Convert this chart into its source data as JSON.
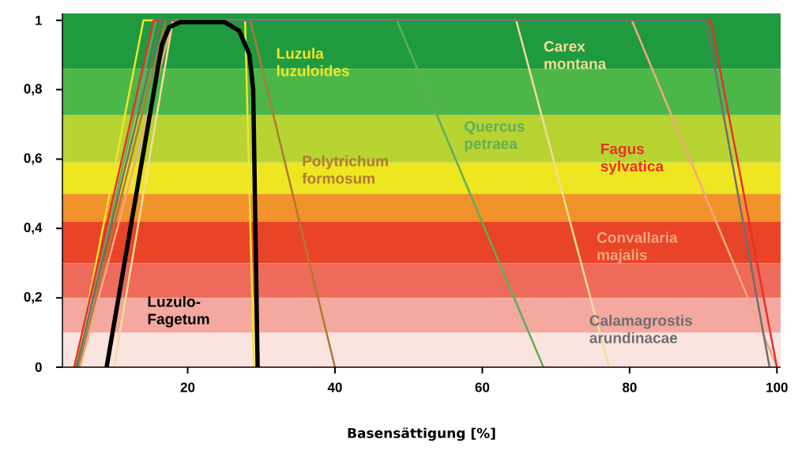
{
  "chart_data": {
    "type": "line",
    "xlabel": "Basensättigung [%]",
    "xlim": [
      3,
      100.5
    ],
    "ylim": [
      0,
      1.02
    ],
    "xticks": [
      20,
      40,
      60,
      80,
      100
    ],
    "yticks": [
      0,
      {
        "value": 0.2,
        "label": "0,2"
      },
      {
        "value": 0.4,
        "label": "0,4"
      },
      {
        "value": 0.6,
        "label": "0,6"
      },
      {
        "value": 0.8,
        "label": "0,8"
      },
      1
    ],
    "bands": [
      {
        "axis": "y",
        "from": 0.86,
        "to": 1.02,
        "color": "#1f9a3f"
      },
      {
        "axis": "y",
        "from": 0.727,
        "to": 0.86,
        "color": "#4cb648"
      },
      {
        "axis": "y",
        "from": 0.59,
        "to": 0.727,
        "color": "#b8d432"
      },
      {
        "axis": "y",
        "from": 0.5,
        "to": 0.59,
        "color": "#eee621"
      },
      {
        "axis": "y",
        "from": 0.42,
        "to": 0.5,
        "color": "#f2922a"
      },
      {
        "axis": "y",
        "from": 0.3,
        "to": 0.42,
        "color": "#e94427"
      },
      {
        "axis": "y",
        "from": 0.2,
        "to": 0.3,
        "color": "#ee6a5a"
      },
      {
        "axis": "y",
        "from": 0.1,
        "to": 0.2,
        "color": "#f4a8a0"
      },
      {
        "axis": "y",
        "from": 0,
        "to": 0.1,
        "color": "#fbe3e0"
      }
    ],
    "series": [
      {
        "name": "Luzula luzuloides",
        "color": "#f0e628",
        "x": [
          4.8,
          14,
          27.8,
          29
        ],
        "values": [
          0,
          1,
          1,
          0
        ]
      },
      {
        "name": "Polytrichum formosum",
        "color": "#b07a30",
        "x": [
          5.2,
          17,
          28.5,
          40
        ],
        "values": [
          0,
          1,
          1,
          0
        ]
      },
      {
        "name": "Quercus petraea",
        "color": "#5fae5a",
        "x": [
          5,
          15.7,
          48.4,
          68.3
        ],
        "values": [
          0,
          1,
          1,
          0
        ]
      },
      {
        "name": "Carex montana",
        "color": "#f5dc98",
        "x": [
          10,
          18,
          64.6,
          77.2
        ],
        "values": [
          0,
          1,
          1,
          0
        ]
      },
      {
        "name": "Convallaria majalis",
        "color": "#f2a882",
        "x": [
          5.4,
          18,
          80.3,
          100
        ],
        "values": [
          0,
          1,
          1,
          0
        ]
      },
      {
        "name": "Fagus sylvatica",
        "color": "#e8302a",
        "x": [
          4.6,
          15.4,
          91,
          100
        ],
        "values": [
          0,
          1,
          1,
          0
        ]
      },
      {
        "name": "Calamagrostis arundinacae",
        "color": "#6e6e70",
        "x": [
          4.9,
          16.4,
          90.4,
          99
        ],
        "values": [
          0,
          1,
          1,
          0
        ]
      },
      {
        "name": "Luzulo-Fagetum",
        "color": "#000000",
        "x": [
          9,
          16.5,
          17.5,
          19,
          25,
          27,
          28.4,
          28.9,
          29.5
        ],
        "values": [
          0,
          0.93,
          0.98,
          0.995,
          0.995,
          0.97,
          0.9,
          0.8,
          0
        ]
      }
    ]
  }
}
